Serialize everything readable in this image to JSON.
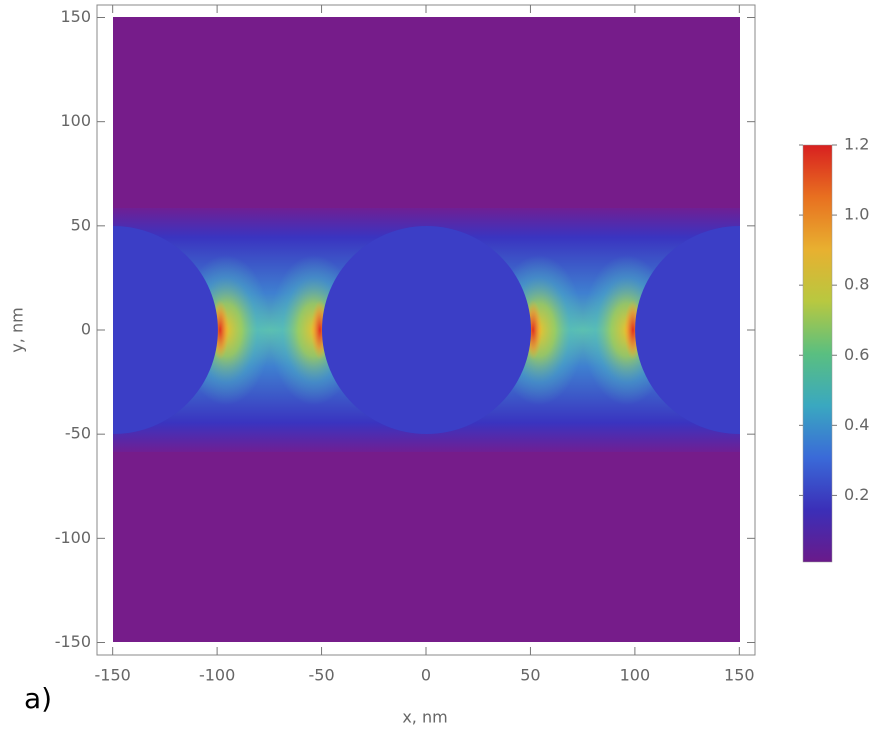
{
  "chart_data": {
    "type": "heatmap",
    "xlabel": "x, nm",
    "ylabel": "y, nm",
    "annotation": "a)",
    "xlim": [
      -157.5,
      157.5
    ],
    "ylim": [
      -156,
      156
    ],
    "xticks": [
      -150,
      -100,
      -50,
      0,
      50,
      100,
      150
    ],
    "yticks": [
      -150,
      -100,
      -50,
      0,
      50,
      100,
      150
    ],
    "clim": [
      0.01,
      1.2
    ],
    "cticks": [
      0.2,
      0.4,
      0.6,
      0.8,
      {
        "value": 1,
        "label": "1.0"
      },
      1.2
    ],
    "colorscale": [
      "#6a1a8a",
      "#3b2fb8",
      "#3a6ad8",
      "#3aa8c0",
      "#5abf80",
      "#b8c840",
      "#e8b030",
      "#e87020",
      "#d82020"
    ]
  }
}
